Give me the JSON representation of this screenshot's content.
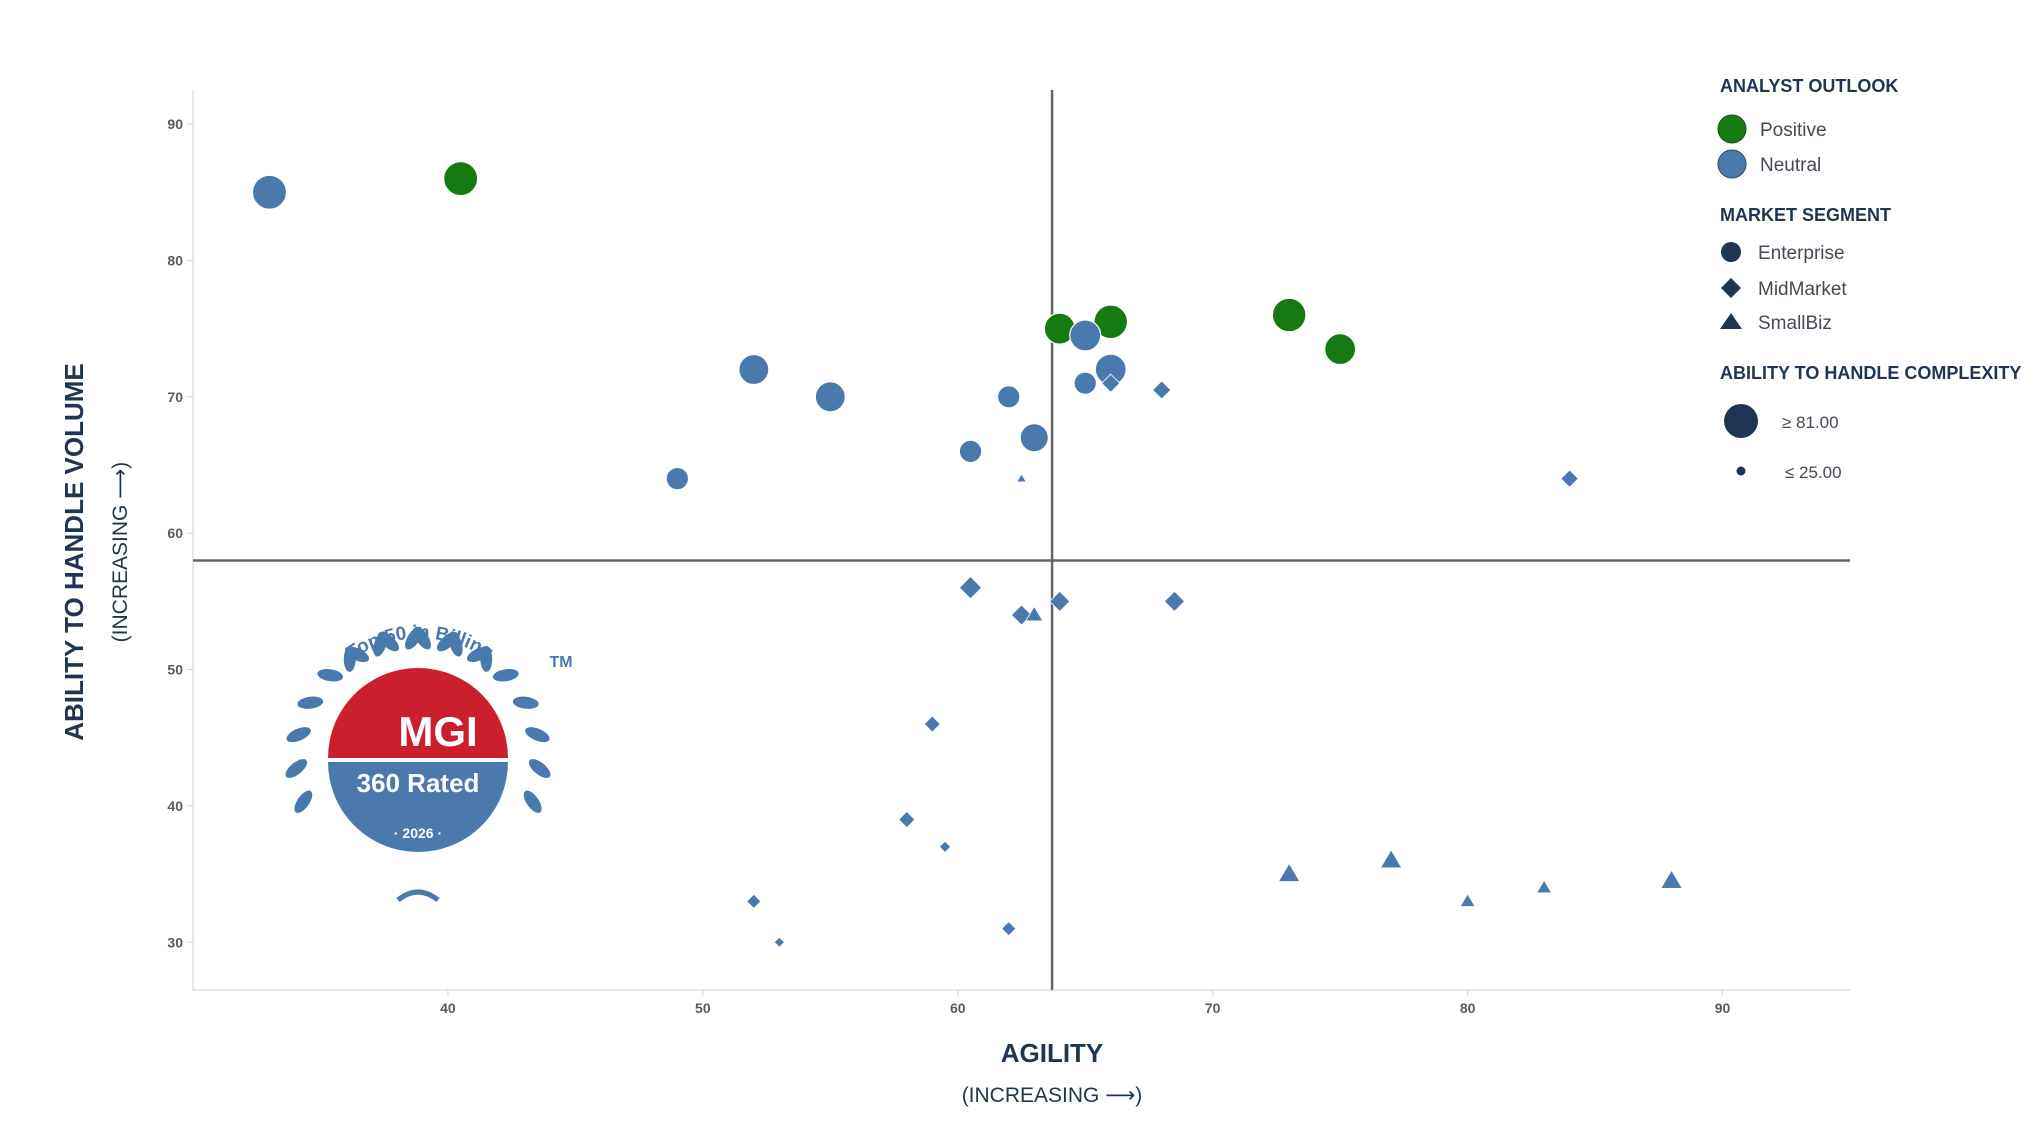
{
  "chart_data": {
    "type": "scatter",
    "xlabel": "AGILITY",
    "xlabel_sub": "(INCREASING ⟶)",
    "ylabel": "ABILITY TO HANDLE VOLUME",
    "ylabel_sub": "(INCREASING ⟶)",
    "xlim": [
      30,
      95
    ],
    "ylim": [
      26.5,
      92.5
    ],
    "x_ticks": [
      40,
      50,
      60,
      70,
      80,
      90
    ],
    "y_ticks": [
      30,
      40,
      50,
      60,
      70,
      80,
      90
    ],
    "quadrant_lines": {
      "x": 63.7,
      "y": 58
    },
    "grid": false,
    "legend_position": "right",
    "colors": {
      "Positive": "#157a12",
      "Neutral": "#4a7aad",
      "legend_marker": "#1f3552",
      "quadrant": "#666666"
    },
    "legend": {
      "outlook_title": "ANALYST OUTLOOK",
      "outlook": [
        {
          "label": "Positive",
          "color": "#157a12"
        },
        {
          "label": "Neutral",
          "color": "#4a7aad"
        }
      ],
      "segment_title": "MARKET SEGMENT",
      "segments": [
        {
          "label": "Enterprise",
          "shape": "circle"
        },
        {
          "label": "MidMarket",
          "shape": "diamond"
        },
        {
          "label": "SmallBiz",
          "shape": "triangle"
        }
      ],
      "size_title": "ABILITY TO HANDLE COMPLEXITY",
      "size_max_label": "≥ 81.00",
      "size_min_label": "≤ 25.00"
    },
    "points": [
      {
        "x": 33,
        "y": 85,
        "segment": "Enterprise",
        "outlook": "Neutral",
        "complexity": 85
      },
      {
        "x": 40.5,
        "y": 86,
        "segment": "Enterprise",
        "outlook": "Positive",
        "complexity": 85
      },
      {
        "x": 52,
        "y": 72,
        "segment": "Enterprise",
        "outlook": "Neutral",
        "complexity": 72
      },
      {
        "x": 55,
        "y": 70,
        "segment": "Enterprise",
        "outlook": "Neutral",
        "complexity": 72
      },
      {
        "x": 49,
        "y": 64,
        "segment": "Enterprise",
        "outlook": "Neutral",
        "complexity": 55
      },
      {
        "x": 60.5,
        "y": 66,
        "segment": "Enterprise",
        "outlook": "Neutral",
        "complexity": 55
      },
      {
        "x": 62,
        "y": 70,
        "segment": "Enterprise",
        "outlook": "Neutral",
        "complexity": 55
      },
      {
        "x": 63,
        "y": 67,
        "segment": "Enterprise",
        "outlook": "Neutral",
        "complexity": 68
      },
      {
        "x": 64,
        "y": 75,
        "segment": "Enterprise",
        "outlook": "Positive",
        "complexity": 74
      },
      {
        "x": 65,
        "y": 74.5,
        "segment": "Enterprise",
        "outlook": "Neutral",
        "complexity": 74
      },
      {
        "x": 66,
        "y": 75.5,
        "segment": "Enterprise",
        "outlook": "Positive",
        "complexity": 80
      },
      {
        "x": 65,
        "y": 71,
        "segment": "Enterprise",
        "outlook": "Neutral",
        "complexity": 55
      },
      {
        "x": 66,
        "y": 72,
        "segment": "Enterprise",
        "outlook": "Neutral",
        "complexity": 74
      },
      {
        "x": 73,
        "y": 76,
        "segment": "Enterprise",
        "outlook": "Positive",
        "complexity": 80
      },
      {
        "x": 75,
        "y": 73.5,
        "segment": "Enterprise",
        "outlook": "Positive",
        "complexity": 74
      },
      {
        "x": 66,
        "y": 71,
        "segment": "MidMarket",
        "outlook": "Neutral",
        "complexity": 50
      },
      {
        "x": 68,
        "y": 70.5,
        "segment": "MidMarket",
        "outlook": "Neutral",
        "complexity": 50
      },
      {
        "x": 84,
        "y": 64,
        "segment": "MidMarket",
        "outlook": "Neutral",
        "complexity": 48
      },
      {
        "x": 60.5,
        "y": 56,
        "segment": "MidMarket",
        "outlook": "Neutral",
        "complexity": 60
      },
      {
        "x": 62.5,
        "y": 54,
        "segment": "MidMarket",
        "outlook": "Neutral",
        "complexity": 55
      },
      {
        "x": 64,
        "y": 55,
        "segment": "MidMarket",
        "outlook": "Neutral",
        "complexity": 55
      },
      {
        "x": 68.5,
        "y": 55,
        "segment": "MidMarket",
        "outlook": "Neutral",
        "complexity": 55
      },
      {
        "x": 59,
        "y": 46,
        "segment": "MidMarket",
        "outlook": "Neutral",
        "complexity": 45
      },
      {
        "x": 58,
        "y": 39,
        "segment": "MidMarket",
        "outlook": "Neutral",
        "complexity": 45
      },
      {
        "x": 59.5,
        "y": 37,
        "segment": "MidMarket",
        "outlook": "Neutral",
        "complexity": 33
      },
      {
        "x": 52,
        "y": 33,
        "segment": "MidMarket",
        "outlook": "Neutral",
        "complexity": 40
      },
      {
        "x": 53,
        "y": 30,
        "segment": "MidMarket",
        "outlook": "Neutral",
        "complexity": 30
      },
      {
        "x": 62,
        "y": 31,
        "segment": "MidMarket",
        "outlook": "Neutral",
        "complexity": 40
      },
      {
        "x": 62.5,
        "y": 64,
        "segment": "SmallBiz",
        "outlook": "Neutral",
        "complexity": 27
      },
      {
        "x": 63,
        "y": 54,
        "segment": "SmallBiz",
        "outlook": "Neutral",
        "complexity": 45
      },
      {
        "x": 73,
        "y": 35,
        "segment": "SmallBiz",
        "outlook": "Neutral",
        "complexity": 55
      },
      {
        "x": 77,
        "y": 36,
        "segment": "SmallBiz",
        "outlook": "Neutral",
        "complexity": 55
      },
      {
        "x": 80,
        "y": 33,
        "segment": "SmallBiz",
        "outlook": "Neutral",
        "complexity": 40
      },
      {
        "x": 83,
        "y": 34,
        "segment": "SmallBiz",
        "outlook": "Neutral",
        "complexity": 40
      },
      {
        "x": 88,
        "y": 34.5,
        "segment": "SmallBiz",
        "outlook": "Neutral",
        "complexity": 55
      }
    ]
  },
  "badge": {
    "arc_text": "Top 50 in Billing",
    "trademark": "TM",
    "brand": "MGI",
    "rating": "360 Rated",
    "year": "· 2026 ·",
    "colors": {
      "red": "#cc1f2c",
      "blue": "#4a7aad"
    }
  }
}
